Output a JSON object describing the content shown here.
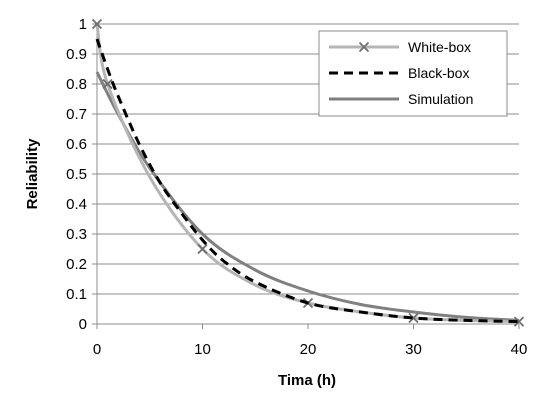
{
  "chart_data": {
    "type": "line",
    "title": "",
    "xlabel": "Tima (h)",
    "ylabel": "Reliability",
    "xlim": [
      0,
      40
    ],
    "ylim": [
      0,
      1
    ],
    "x_ticks": [
      0,
      10,
      20,
      30,
      40
    ],
    "y_ticks": [
      0,
      0.1,
      0.2,
      0.3,
      0.4,
      0.5,
      0.6,
      0.7,
      0.8,
      0.9,
      1
    ],
    "x_tick_labels": [
      "0",
      "10",
      "20",
      "30",
      "40"
    ],
    "y_tick_labels": [
      "0",
      "0.1",
      "0.2",
      "0.3",
      "0.4",
      "0.5",
      "0.6",
      "0.7",
      "0.8",
      "0.9",
      "1"
    ],
    "grid": "horizontal",
    "legend_position": "top-right",
    "series": [
      {
        "name": "White-box",
        "color": "#b5b5b5",
        "style": "solid",
        "marker": "x",
        "x": [
          0,
          1,
          5,
          10,
          15,
          20,
          25,
          30,
          35,
          40
        ],
        "y": [
          1.0,
          0.8,
          0.49,
          0.25,
          0.13,
          0.07,
          0.04,
          0.02,
          0.012,
          0.008
        ],
        "marker_x": [
          0,
          1,
          10,
          20,
          30,
          40
        ],
        "marker_y": [
          1.0,
          0.8,
          0.25,
          0.07,
          0.02,
          0.008
        ]
      },
      {
        "name": "Black-box",
        "color": "#000000",
        "style": "dashed",
        "marker": "none",
        "x": [
          0,
          1,
          2,
          4,
          6,
          8,
          10,
          12,
          15,
          20,
          25,
          30,
          35,
          40
        ],
        "y": [
          0.95,
          0.85,
          0.76,
          0.6,
          0.47,
          0.37,
          0.28,
          0.21,
          0.14,
          0.07,
          0.04,
          0.02,
          0.012,
          0.008
        ],
        "marker_x": [],
        "marker_y": []
      },
      {
        "name": "Simulation",
        "color": "#808080",
        "style": "solid",
        "marker": "none",
        "x": [
          0,
          2,
          5,
          10,
          15,
          20,
          25,
          30,
          35,
          40
        ],
        "y": [
          0.84,
          0.7,
          0.52,
          0.3,
          0.18,
          0.11,
          0.065,
          0.04,
          0.022,
          0.012
        ],
        "marker_x": [],
        "marker_y": []
      }
    ]
  }
}
